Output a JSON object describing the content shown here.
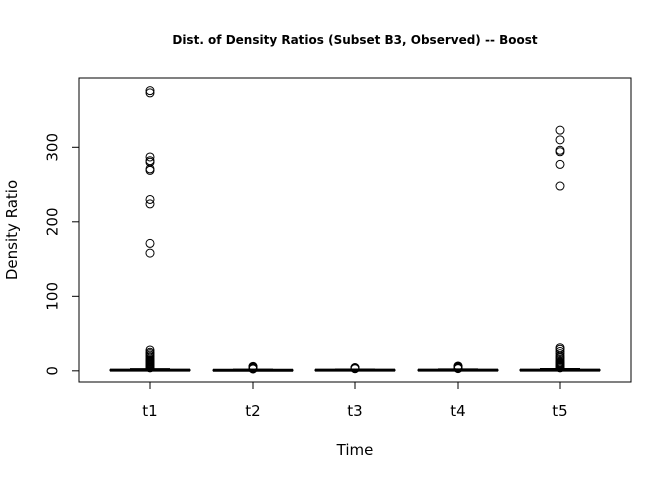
{
  "chart_data": {
    "type": "box",
    "title": "Dist. of Density Ratios (Subset B3, Observed) -- Boost",
    "xlabel": "Time",
    "ylabel": "Density Ratio",
    "categories": [
      "t1",
      "t2",
      "t3",
      "t4",
      "t5"
    ],
    "y_ticks": [
      0,
      100,
      200,
      300
    ],
    "ylim": [
      -15,
      393
    ],
    "grid": false,
    "legend": "none",
    "boxes": [
      {
        "category": "t1",
        "q1": 0.3,
        "median": 0.9,
        "q3": 1.5,
        "whisker_low": 0.0,
        "whisker_high": 3.0,
        "outliers": [
          4,
          5,
          6,
          7,
          8,
          9,
          10,
          11,
          12,
          13,
          14,
          15,
          17,
          19,
          21,
          23,
          25,
          28,
          158,
          171,
          224,
          230,
          269,
          271,
          280,
          282,
          287,
          373,
          376
        ]
      },
      {
        "category": "t2",
        "q1": 0.2,
        "median": 0.8,
        "q3": 1.2,
        "whisker_low": 0.0,
        "whisker_high": 2.2,
        "outliers": [
          2.5,
          3,
          3.5,
          4,
          4.5,
          5,
          5.5,
          6
        ]
      },
      {
        "category": "t3",
        "q1": 0.3,
        "median": 0.9,
        "q3": 1.4,
        "whisker_low": 0.0,
        "whisker_high": 2.5,
        "outliers": [
          2.8,
          3.2,
          3.6,
          4,
          4.4
        ]
      },
      {
        "category": "t4",
        "q1": 0.3,
        "median": 0.9,
        "q3": 1.4,
        "whisker_low": 0.0,
        "whisker_high": 2.6,
        "outliers": [
          3,
          3.5,
          4,
          4.5,
          5,
          5.5,
          6,
          6.5
        ]
      },
      {
        "category": "t5",
        "q1": 0.3,
        "median": 0.9,
        "q3": 1.6,
        "whisker_low": 0.0,
        "whisker_high": 3.2,
        "outliers": [
          4,
          5,
          6,
          7,
          8,
          9,
          10,
          11,
          12,
          14,
          16,
          18,
          20,
          23,
          26,
          29,
          31,
          248,
          277,
          294,
          296,
          310,
          323
        ]
      }
    ]
  }
}
